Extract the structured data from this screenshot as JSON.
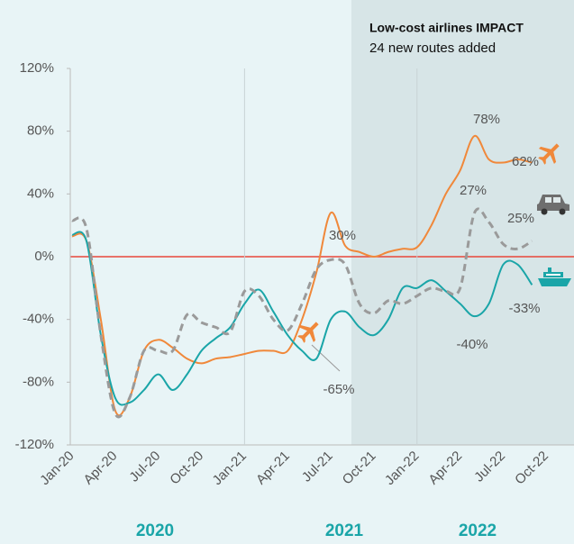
{
  "chart_data": {
    "type": "line",
    "categories": [
      "Jan-20",
      null,
      null,
      "Apr-20",
      null,
      null,
      "Jul-20",
      null,
      null,
      "Oct-20",
      null,
      null,
      "Jan-21",
      null,
      null,
      "Apr-21",
      null,
      null,
      "Jul-21",
      null,
      null,
      "Oct-21",
      null,
      null,
      "Jan-22",
      null,
      null,
      "Apr-22",
      null,
      null,
      "Jul-22",
      null,
      null,
      "Oct-22"
    ],
    "series": [
      {
        "color": "#f0883a",
        "dashed": false,
        "values": [
          13,
          10,
          -40,
          -98,
          -90,
          -60,
          -53,
          -58,
          -65,
          -68,
          -65,
          -64,
          -62,
          -60,
          -60,
          -60,
          -40,
          -10,
          28,
          7,
          3,
          0,
          3,
          5,
          6,
          20,
          40,
          55,
          77,
          62,
          60,
          62,
          60,
          null
        ]
      },
      {
        "color": "#1aa5a8",
        "dashed": false,
        "values": [
          14,
          10,
          -50,
          -90,
          -93,
          -85,
          -75,
          -85,
          -75,
          -60,
          -52,
          -45,
          -30,
          -21,
          -35,
          -50,
          -60,
          -65,
          -40,
          -35,
          -45,
          -50,
          -40,
          -20,
          -20,
          -15,
          -22,
          -30,
          -38,
          -30,
          -5,
          -5,
          -18,
          null
        ]
      },
      {
        "color": "#9a9a9a",
        "dashed": true,
        "values": [
          23,
          18,
          -50,
          -100,
          -90,
          -60,
          -60,
          -60,
          -37,
          -42,
          -45,
          -48,
          -22,
          -25,
          -40,
          -47,
          -30,
          -8,
          -2,
          -5,
          -30,
          -36,
          -28,
          -30,
          -25,
          -20,
          -22,
          -20,
          28,
          22,
          8,
          5,
          10,
          null
        ]
      }
    ],
    "ylim": [
      -120,
      120
    ],
    "yticks": [
      {
        "value": -120,
        "label": "-120%"
      },
      {
        "value": -80,
        "label": "-80%"
      },
      {
        "value": -40,
        "label": "-40%"
      },
      {
        "value": 0,
        "label": "0%"
      },
      {
        "value": 40,
        "label": "40%"
      },
      {
        "value": 80,
        "label": "80%"
      },
      {
        "value": 120,
        "label": "120%"
      }
    ],
    "annotation_title": "Low-cost airlines IMPACT",
    "annotation_text": "24 new routes added",
    "annotations": [
      "78%",
      "62%",
      "27%",
      "25%",
      "30%",
      "-65%",
      "-40%",
      "-33%"
    ],
    "years": [
      "2020",
      "2021",
      "2022"
    ]
  }
}
